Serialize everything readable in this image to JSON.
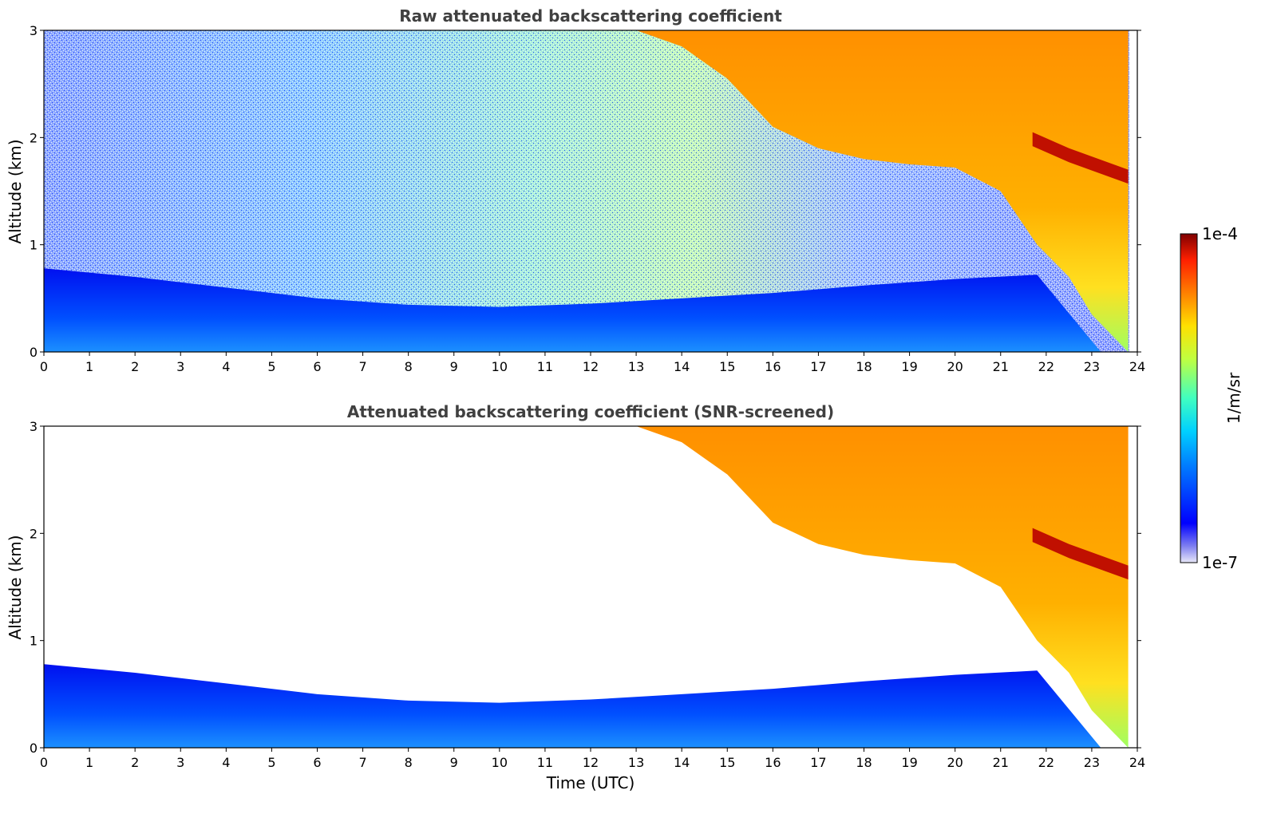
{
  "chart_data": [
    {
      "type": "heatmap",
      "title": "Raw attenuated backscattering coefficient",
      "xlabel": "",
      "ylabel": "Altitude (km)",
      "xlim": [
        0,
        24
      ],
      "ylim": [
        0,
        3
      ],
      "x_ticks": [
        0,
        1,
        2,
        3,
        4,
        5,
        6,
        7,
        8,
        9,
        10,
        11,
        12,
        13,
        14,
        15,
        16,
        17,
        18,
        19,
        20,
        21,
        22,
        23,
        24
      ],
      "y_ticks": [
        0,
        1,
        2,
        3
      ],
      "features": {
        "boundary_layer_top_km": [
          {
            "x": 0,
            "y": 0.78
          },
          {
            "x": 2,
            "y": 0.7
          },
          {
            "x": 4,
            "y": 0.6
          },
          {
            "x": 6,
            "y": 0.5
          },
          {
            "x": 8,
            "y": 0.44
          },
          {
            "x": 10,
            "y": 0.42
          },
          {
            "x": 12,
            "y": 0.45
          },
          {
            "x": 14,
            "y": 0.5
          },
          {
            "x": 16,
            "y": 0.55
          },
          {
            "x": 18,
            "y": 0.62
          },
          {
            "x": 20,
            "y": 0.68
          },
          {
            "x": 21.8,
            "y": 0.72
          }
        ],
        "cloud_base_km": [
          {
            "x": 13,
            "y": 3.0
          },
          {
            "x": 14,
            "y": 2.85
          },
          {
            "x": 15,
            "y": 2.55
          },
          {
            "x": 16,
            "y": 2.1
          },
          {
            "x": 17,
            "y": 1.9
          },
          {
            "x": 18,
            "y": 1.8
          },
          {
            "x": 19,
            "y": 1.75
          },
          {
            "x": 20,
            "y": 1.72
          },
          {
            "x": 21,
            "y": 1.5
          },
          {
            "x": 21.8,
            "y": 1.0
          },
          {
            "x": 22.5,
            "y": 0.7
          },
          {
            "x": 23.0,
            "y": 0.35
          },
          {
            "x": 23.8,
            "y": 0.0
          }
        ],
        "dense_layer_km": [
          {
            "x": 21.7,
            "y": 2.0
          },
          {
            "x": 22.5,
            "y": 1.85
          },
          {
            "x": 23.8,
            "y": 1.65
          }
        ],
        "data_end_hour": 23.8
      }
    },
    {
      "type": "heatmap",
      "title": "Attenuated backscattering coefficient (SNR-screened)",
      "xlabel": "Time (UTC)",
      "ylabel": "Altitude (km)",
      "xlim": [
        0,
        24
      ],
      "ylim": [
        0,
        3
      ],
      "x_ticks": [
        0,
        1,
        2,
        3,
        4,
        5,
        6,
        7,
        8,
        9,
        10,
        11,
        12,
        13,
        14,
        15,
        16,
        17,
        18,
        19,
        20,
        21,
        22,
        23,
        24
      ],
      "y_ticks": [
        0,
        1,
        2,
        3
      ]
    }
  ],
  "colorbar": {
    "label": "1/m/sr",
    "max_label": "1e-4",
    "min_label": "1e-7",
    "range": [
      1e-07,
      0.0001
    ],
    "scale": "log",
    "colormap": "jet"
  }
}
